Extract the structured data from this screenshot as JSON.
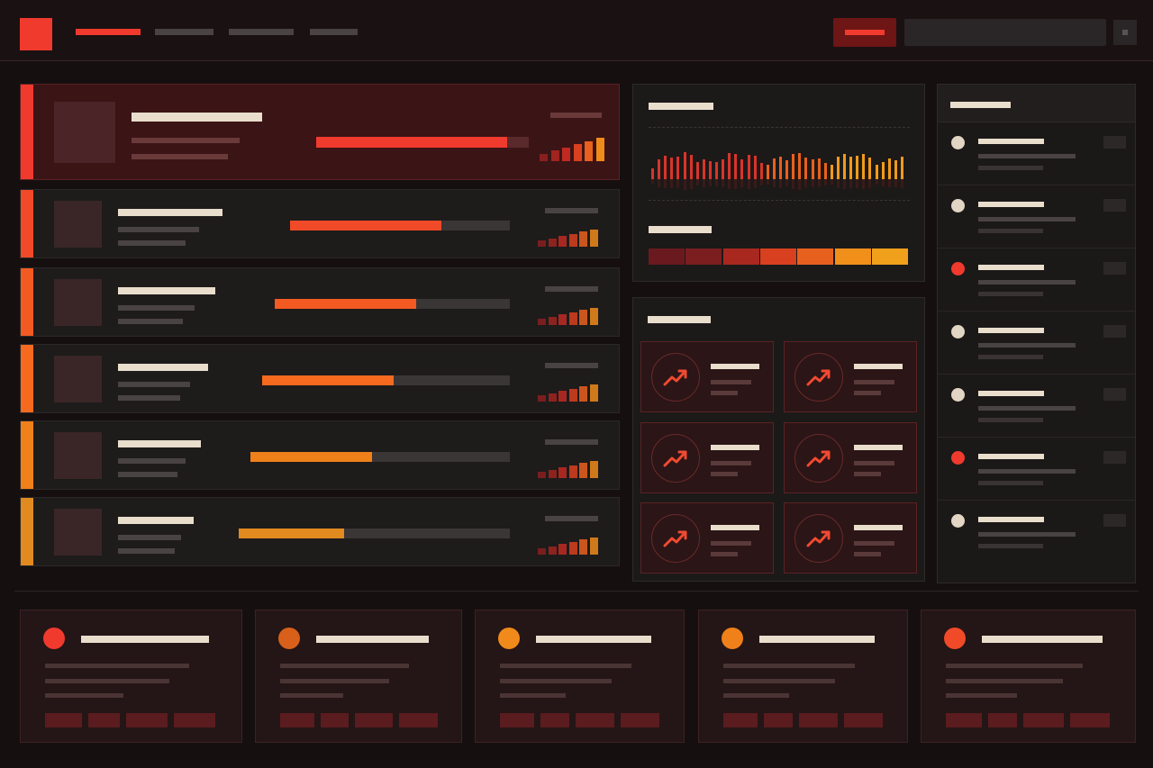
{
  "rows": [
    {
      "progress": 90
    },
    {
      "progress": 69
    },
    {
      "progress": 60
    },
    {
      "progress": 53
    },
    {
      "progress": 47
    },
    {
      "progress": 39
    }
  ]
}
